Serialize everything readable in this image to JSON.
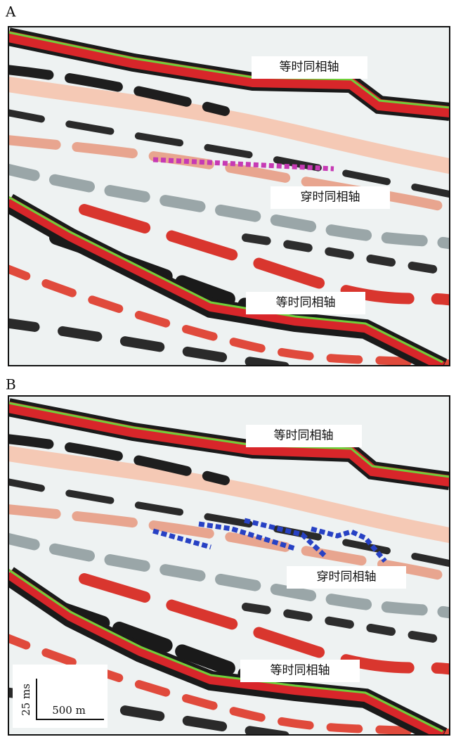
{
  "panels": [
    {
      "label": "A",
      "annotations": [
        "等时同相轴",
        "穿时同相轴",
        "等时同相轴"
      ]
    },
    {
      "label": "B",
      "annotations": [
        "等时同相轴",
        "穿时同相轴",
        "等时同相轴"
      ],
      "scale_bar": {
        "vertical": "25 ms",
        "horizontal": "500 m"
      }
    }
  ]
}
